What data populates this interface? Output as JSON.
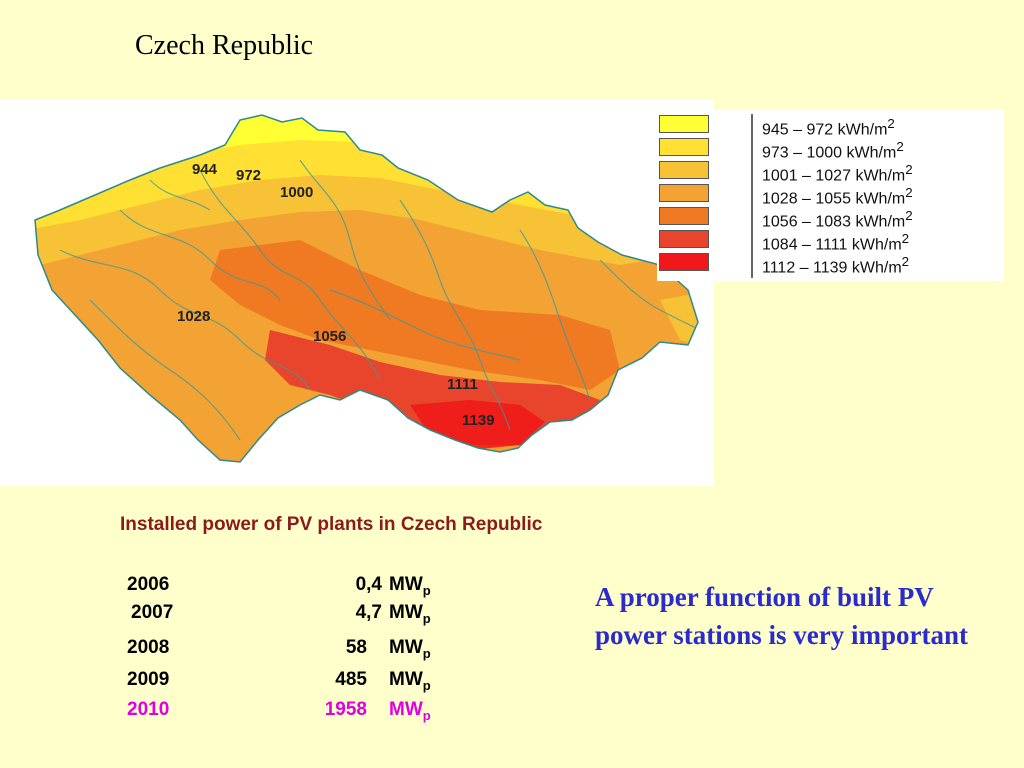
{
  "title": "Czech Republic",
  "map": {
    "contour_labels": [
      "944",
      "972",
      "1000",
      "1028",
      "1056",
      "1111",
      "1139"
    ]
  },
  "legend": {
    "unit": "kWh/m",
    "unit_power": "2",
    "items": [
      {
        "range": "945 – 972",
        "color": "#FFFF33"
      },
      {
        "range": "973 – 1000",
        "color": "#FFE033"
      },
      {
        "range": "1001 – 1027",
        "color": "#F8C236"
      },
      {
        "range": "1028 – 1055",
        "color": "#F3A334"
      },
      {
        "range": "1056 – 1083",
        "color": "#F07A22"
      },
      {
        "range": "1084 – 1111",
        "color": "#E8452C"
      },
      {
        "range": "1112 – 1139",
        "color": "#F01818"
      }
    ]
  },
  "pv_table": {
    "title": "Installed power of PV plants in Czech Republic",
    "unit": "MW",
    "unit_sub": "p",
    "highlight_color": "#E000E0",
    "rows": [
      {
        "year": "2006",
        "value": "0,4"
      },
      {
        "year": "2007",
        "value": "4,7"
      },
      {
        "year": "2008",
        "value": "58"
      },
      {
        "year": "2009",
        "value": "485"
      },
      {
        "year": "2010",
        "value": "1958"
      }
    ]
  },
  "note": "A proper function of built PV power stations is very important"
}
